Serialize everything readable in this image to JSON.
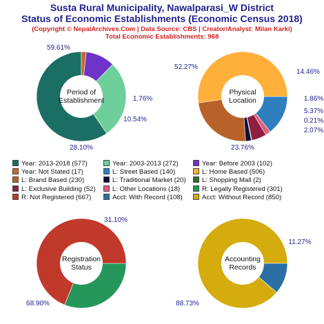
{
  "header": {
    "title_line1": "Susta Rural Municipality, Nawalparasi_W District",
    "title_line2": "Status of Economic Establishments (Economic Census 2018)",
    "sub_line1": "(Copyright © NepalArchives.Com | Data Source: CBS | Creator/Analyst: Milan Karki)",
    "sub_line2": "Total Economic Establishments: 968"
  },
  "colors": {
    "title": "#1f1f8f",
    "subtitle": "#d21f1f",
    "label": "#1f1f8f"
  },
  "chart_data": [
    {
      "type": "pie",
      "center_label": [
        "Period of",
        "Establishment"
      ],
      "slices": [
        {
          "label": "Year: 2013-2018",
          "count": 577,
          "pct": "59.61%",
          "value": 59.61,
          "color": "#1b6e63"
        },
        {
          "label": "Year: 2003-2013",
          "count": 272,
          "pct": "28.10%",
          "value": 28.1,
          "color": "#6fcf9b"
        },
        {
          "label": "Year: Before 2003",
          "count": 102,
          "pct": "10.54%",
          "value": 10.54,
          "color": "#6e33c9"
        },
        {
          "label": "Year: Not Stated",
          "count": 17,
          "pct": "1.76%",
          "value": 1.76,
          "color": "#c9672e"
        }
      ]
    },
    {
      "type": "pie",
      "center_label": [
        "Physical",
        "Location"
      ],
      "slices": [
        {
          "label": "L: Street Based",
          "count": 140,
          "pct": "14.46%",
          "value": 14.46,
          "color": "#2f7fbf"
        },
        {
          "label": "L: Other Locations",
          "count": 18,
          "pct": "1.86%",
          "value": 1.86,
          "color": "#e0607a"
        },
        {
          "label": "L: Exclusive Building",
          "count": 52,
          "pct": "5.37%",
          "value": 5.37,
          "color": "#8e1f3f"
        },
        {
          "label": "L: Shopping Mall",
          "count": 2,
          "pct": "0.21%",
          "value": 0.21,
          "color": "#2f6f2f"
        },
        {
          "label": "L: Traditional Market",
          "count": 20,
          "pct": "2.07%",
          "value": 2.07,
          "color": "#0d0d3a"
        },
        {
          "label": "L: Brand Based",
          "count": 230,
          "pct": "23.76%",
          "value": 23.76,
          "color": "#b8622a"
        },
        {
          "label": "L: Home Based",
          "count": 506,
          "pct": "52.27%",
          "value": 52.27,
          "color": "#ffb03b"
        }
      ]
    },
    {
      "type": "pie",
      "center_label": [
        "Registration",
        "Status"
      ],
      "slices": [
        {
          "label": "R: Legally Registered",
          "count": 301,
          "pct": "31.10%",
          "value": 31.1,
          "color": "#25975a"
        },
        {
          "label": "R: Not Registered",
          "count": 667,
          "pct": "68.90%",
          "value": 68.9,
          "color": "#c0392b"
        }
      ]
    },
    {
      "type": "pie",
      "center_label": [
        "Accounting",
        "Records"
      ],
      "slices": [
        {
          "label": "Acct: With Record",
          "count": 108,
          "pct": "11.27%",
          "value": 11.27,
          "color": "#2a6fa3"
        },
        {
          "label": "Acct: Without Record",
          "count": 850,
          "pct": "88.73%",
          "value": 88.73,
          "color": "#d4ac0d"
        }
      ]
    }
  ],
  "legend": [
    {
      "text": "Year: 2013-2018 (577)",
      "color": "#1b6e63"
    },
    {
      "text": "Year: 2003-2013 (272)",
      "color": "#6fcf9b"
    },
    {
      "text": "Year: Before 2003 (102)",
      "color": "#6e33c9"
    },
    {
      "text": "Year: Not Stated (17)",
      "color": "#c9672e"
    },
    {
      "text": "L: Street Based (140)",
      "color": "#2f7fbf"
    },
    {
      "text": "L: Home Based (506)",
      "color": "#ffb03b"
    },
    {
      "text": "L: Brand Based (230)",
      "color": "#b8622a"
    },
    {
      "text": "L: Traditional Market (20)",
      "color": "#0d0d3a"
    },
    {
      "text": "L: Shopping Mall (2)",
      "color": "#2f6f2f"
    },
    {
      "text": "L: Exclusive Building (52)",
      "color": "#8e1f3f"
    },
    {
      "text": "L: Other Locations (18)",
      "color": "#e0607a"
    },
    {
      "text": "R: Legally Registered (301)",
      "color": "#25975a"
    },
    {
      "text": "R: Not Registered (667)",
      "color": "#c0392b"
    },
    {
      "text": "Acct: With Record (108)",
      "color": "#2a6fa3"
    },
    {
      "text": "Acct: Without Record (850)",
      "color": "#d4ac0d"
    }
  ]
}
